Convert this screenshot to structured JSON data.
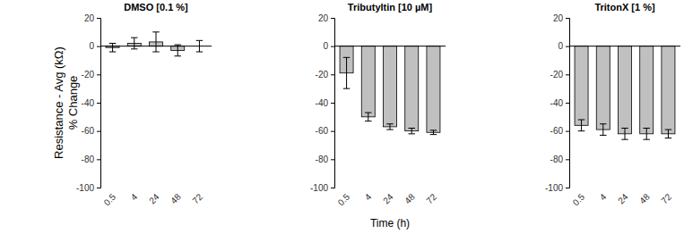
{
  "chart_data": [
    {
      "type": "bar",
      "title": "DMSO [0.1 %]",
      "y_label": [
        "Resistance - Avg (kΩ)",
        "% Change"
      ],
      "categories": [
        "0.5",
        "4",
        "24",
        "48",
        "72"
      ],
      "values": [
        -1,
        2,
        3,
        -3,
        0
      ],
      "errors": [
        3,
        4,
        7,
        4,
        4
      ],
      "color": "#c0c0c0",
      "ylim": [
        -100,
        20
      ],
      "yticks": [
        -100,
        -80,
        -60,
        -40,
        -20,
        0,
        20
      ]
    },
    {
      "type": "bar",
      "title": "Tributyltin [10 µM]",
      "x_label": "Time (h)",
      "categories": [
        "0.5",
        "4",
        "24",
        "48",
        "72"
      ],
      "values": [
        -19,
        -50,
        -57,
        -60,
        -61
      ],
      "errors": [
        11,
        3,
        2,
        2,
        1.5
      ],
      "color": "#c0c0c0",
      "ylim": [
        -100,
        20
      ],
      "yticks": [
        -100,
        -80,
        -60,
        -40,
        -20,
        0,
        20
      ]
    },
    {
      "type": "bar",
      "title": "TritonX [1 %]",
      "categories": [
        "0.5",
        "4",
        "24",
        "48",
        "72"
      ],
      "values": [
        -56,
        -59,
        -62,
        -62,
        -62
      ],
      "errors": [
        4,
        4,
        4,
        4,
        3
      ],
      "color": "#c0c0c0",
      "ylim": [
        -100,
        20
      ],
      "yticks": [
        -100,
        -80,
        -60,
        -40,
        -20,
        0,
        20
      ]
    }
  ]
}
